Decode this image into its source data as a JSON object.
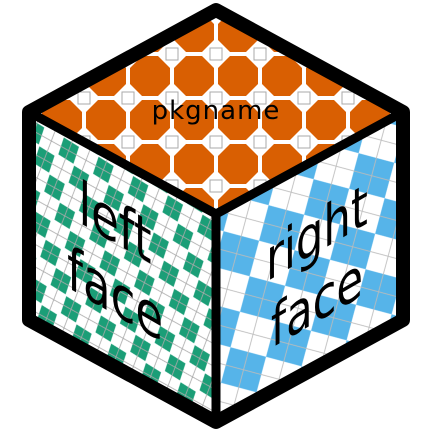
{
  "logo": {
    "top_label": "pkgname",
    "left_label_line1": "left",
    "left_label_line2": "face",
    "right_label_line1": "right",
    "right_label_line2": "face"
  },
  "colors": {
    "top_fill": "#d95f02",
    "top_background": "#ffffff",
    "left_fill": "#1b9e77",
    "right_fill": "#56b4e9",
    "tile_lines": "#aaaaaa",
    "outline": "#000000"
  },
  "icons": {
    "top_pattern": "octagon-tiling",
    "left_pattern": "rhombille-tiling",
    "right_pattern": "diamond-harlequin"
  }
}
